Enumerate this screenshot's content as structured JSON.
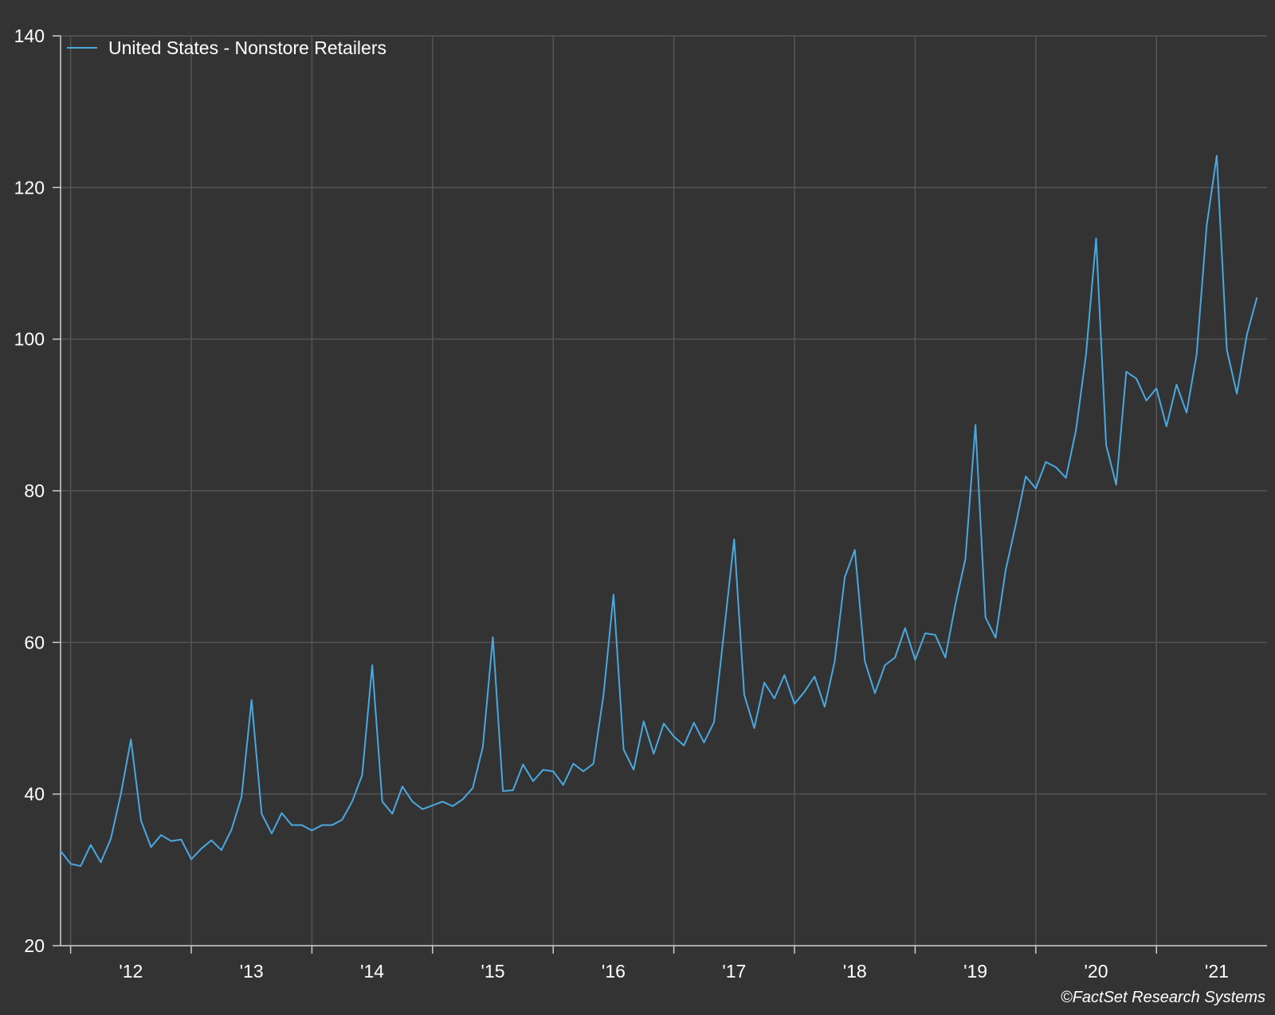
{
  "colors": {
    "background": "#333333",
    "grid": "#555555",
    "axis": "#cccccc",
    "series": "#4aa8e0",
    "text": "#ffffff"
  },
  "source": "©FactSet Research Systems",
  "chart_data": {
    "type": "line",
    "title": "",
    "xlabel": "",
    "ylabel": "",
    "ylim": [
      20,
      140
    ],
    "yticks": [
      20,
      40,
      60,
      80,
      100,
      120,
      140
    ],
    "xticks": [
      {
        "label": "'12",
        "date": "2012-01"
      },
      {
        "label": "'13",
        "date": "2013-01"
      },
      {
        "label": "'14",
        "date": "2014-01"
      },
      {
        "label": "'15",
        "date": "2015-01"
      },
      {
        "label": "'16",
        "date": "2016-01"
      },
      {
        "label": "'17",
        "date": "2017-01"
      },
      {
        "label": "'18",
        "date": "2018-01"
      },
      {
        "label": "'19",
        "date": "2019-01"
      },
      {
        "label": "'20",
        "date": "2020-01"
      },
      {
        "label": "'21",
        "date": "2021-01"
      }
    ],
    "xlim": [
      "2011-12",
      "2021-12"
    ],
    "grid": true,
    "legend_position": "top-left",
    "series": [
      {
        "name": "United States - Nonstore Retailers",
        "start": "2011-12",
        "frequency": "monthly",
        "values": [
          32.5,
          30.8,
          30.5,
          33.3,
          31.0,
          34.1,
          40.0,
          47.2,
          36.5,
          33.0,
          34.6,
          33.8,
          34.0,
          31.4,
          32.8,
          33.9,
          32.6,
          35.3,
          39.6,
          52.4,
          37.4,
          34.8,
          37.5,
          35.9,
          35.9,
          35.2,
          35.9,
          35.9,
          36.6,
          39.0,
          42.5,
          57.0,
          39.0,
          37.4,
          41.0,
          39.0,
          38.0,
          38.5,
          39.0,
          38.4,
          39.3,
          40.8,
          46.2,
          60.7,
          40.4,
          40.5,
          43.9,
          41.7,
          43.2,
          43.0,
          41.2,
          44.0,
          43.0,
          44.0,
          53.0,
          66.3,
          45.9,
          43.2,
          49.6,
          45.3,
          49.3,
          47.6,
          46.4,
          49.4,
          46.8,
          49.5,
          61.5,
          73.6,
          53.1,
          48.7,
          54.7,
          52.6,
          55.7,
          51.9,
          53.5,
          55.5,
          51.5,
          57.5,
          68.6,
          72.2,
          57.5,
          53.3,
          57.0,
          58.0,
          61.9,
          57.7,
          61.2,
          61.0,
          58.0,
          65.0,
          71.0,
          88.7,
          63.3,
          60.6,
          69.5,
          75.5,
          81.9,
          80.3,
          83.8,
          83.1,
          81.7,
          88.0,
          98.0,
          113.3,
          86.0,
          80.8,
          95.7,
          94.8,
          91.9,
          93.5,
          88.5,
          94.0,
          90.3,
          98.0,
          115.0,
          124.2,
          98.6,
          92.8,
          100.6,
          105.5
        ]
      }
    ]
  }
}
